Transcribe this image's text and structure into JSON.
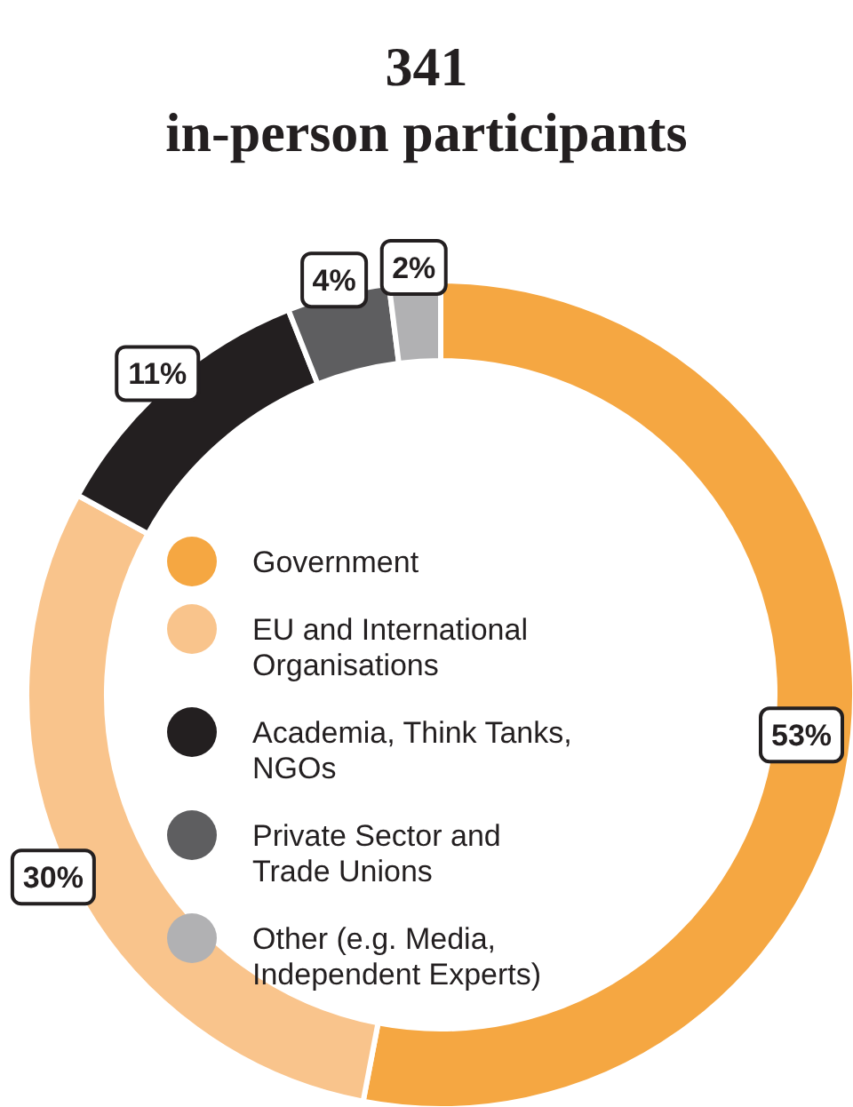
{
  "chart_data": {
    "type": "donut",
    "title": "341",
    "subtitle": "in-person participants",
    "categories": [
      "Government",
      "EU and International Organisations",
      "Academia, Think Tanks, NGOs",
      "Private Sector and Trade Unions",
      "Other (e.g. Media, Independent Experts)"
    ],
    "values": [
      53,
      30,
      11,
      4,
      2
    ],
    "colors": [
      "#f5a742",
      "#f9c48c",
      "#231f20",
      "#5e5e60",
      "#b1b1b3"
    ],
    "value_labels": [
      "53%",
      "30%",
      "11%",
      "4%",
      "2%"
    ],
    "legend": "center"
  }
}
